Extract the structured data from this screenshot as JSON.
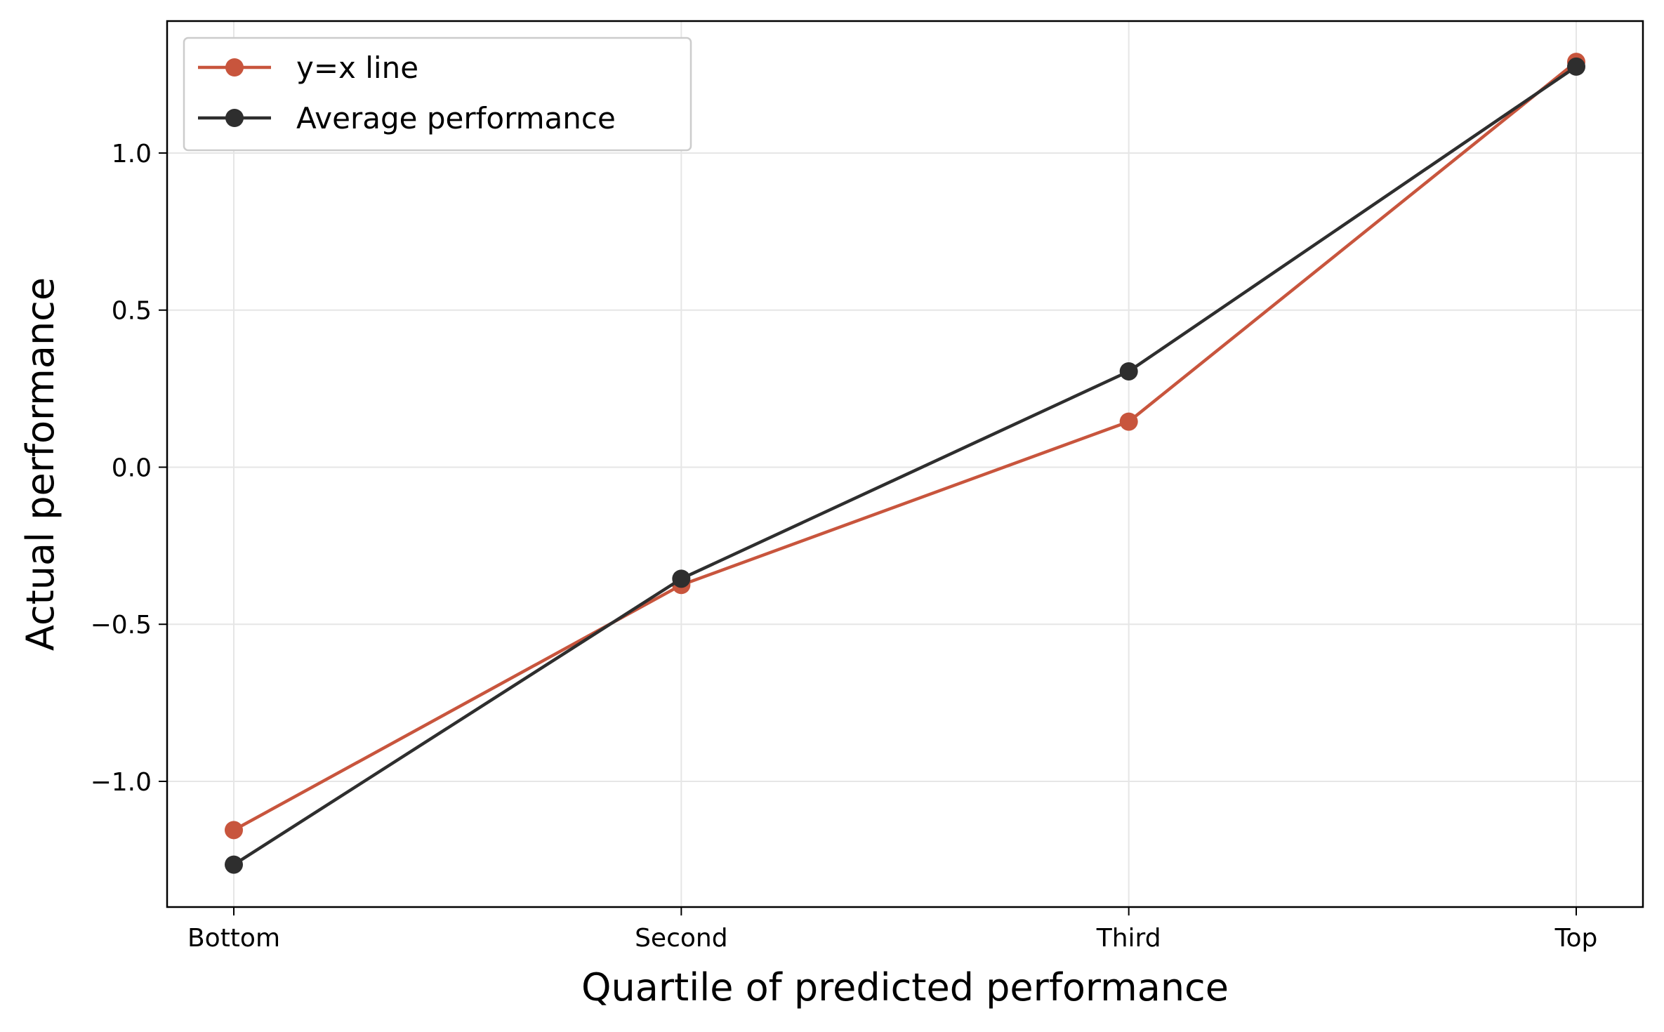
{
  "chart_data": {
    "type": "line",
    "title": "",
    "xlabel": "Quartile of predicted performance",
    "ylabel": "Actual performance",
    "categories": [
      "Bottom",
      "Second",
      "Third",
      "Top"
    ],
    "series": [
      {
        "name": "y=x line",
        "color": "#c8553d",
        "marker": "circle",
        "values": [
          -1.155,
          -0.375,
          0.145,
          1.29
        ]
      },
      {
        "name": "Average performance",
        "color": "#2e2e2e",
        "marker": "circle",
        "values": [
          -1.265,
          -0.355,
          0.305,
          1.275
        ]
      }
    ],
    "ylim": [
      -1.4,
      1.42
    ],
    "yticks": [
      {
        "value": -1.0,
        "label": "−1.0"
      },
      {
        "value": -0.5,
        "label": "−0.5"
      },
      {
        "value": 0.0,
        "label": "0.0"
      },
      {
        "value": 0.5,
        "label": "0.5"
      },
      {
        "value": 1.0,
        "label": "1.0"
      }
    ],
    "grid": true,
    "legend_position": "upper-left"
  }
}
